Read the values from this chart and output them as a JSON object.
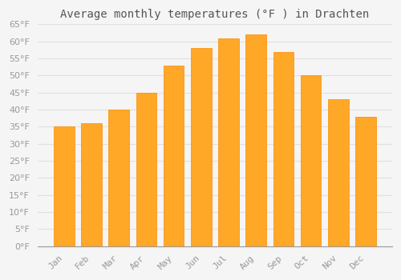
{
  "title": "Average monthly temperatures (°F ) in Drachten",
  "months": [
    "Jan",
    "Feb",
    "Mar",
    "Apr",
    "May",
    "Jun",
    "Jul",
    "Aug",
    "Sep",
    "Oct",
    "Nov",
    "Dec"
  ],
  "values": [
    35,
    36,
    40,
    45,
    53,
    58,
    61,
    62,
    57,
    50,
    43,
    38
  ],
  "bar_color": "#FFA726",
  "bar_edge_color": "#FB8C00",
  "background_color": "#F5F5F5",
  "plot_bg_color": "#F5F5F5",
  "grid_color": "#E0E0E0",
  "ylim": [
    0,
    65
  ],
  "yticks": [
    0,
    5,
    10,
    15,
    20,
    25,
    30,
    35,
    40,
    45,
    50,
    55,
    60,
    65
  ],
  "title_fontsize": 10,
  "tick_fontsize": 8,
  "tick_color": "#999999",
  "title_color": "#555555"
}
